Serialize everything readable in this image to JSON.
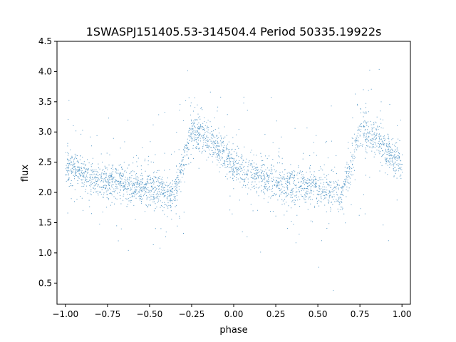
{
  "chart_data": {
    "type": "scatter",
    "title": "1SWASPJ151405.53-314504.4 Period 50335.19922s",
    "xlabel": "phase",
    "ylabel": "flux",
    "xlim": [
      -1.05,
      1.05
    ],
    "ylim": [
      0.15,
      4.5
    ],
    "xticks": [
      -1.0,
      -0.75,
      -0.5,
      -0.25,
      0.0,
      0.25,
      0.5,
      0.75,
      1.0
    ],
    "xtick_labels": [
      "−1.00",
      "−0.75",
      "−0.50",
      "−0.25",
      "0.00",
      "0.25",
      "0.50",
      "0.75",
      "1.00"
    ],
    "yticks": [
      0.5,
      1.0,
      1.5,
      2.0,
      2.5,
      3.0,
      3.5,
      4.0,
      4.5
    ],
    "ytick_labels": [
      "0.5",
      "1.0",
      "1.5",
      "2.0",
      "2.5",
      "3.0",
      "3.5",
      "4.0",
      "4.5"
    ],
    "grid": false,
    "color": "#1f77b4",
    "light_curve": {
      "phase": [
        0.0,
        0.05,
        0.1,
        0.15,
        0.2,
        0.25,
        0.3,
        0.35,
        0.4,
        0.45,
        0.5,
        0.55,
        0.6,
        0.64,
        0.7,
        0.75,
        0.78,
        0.85,
        0.9,
        0.95,
        1.0
      ],
      "flux": [
        2.45,
        2.38,
        2.32,
        2.27,
        2.22,
        2.19,
        2.16,
        2.13,
        2.11,
        2.09,
        2.07,
        2.05,
        2.02,
        1.95,
        2.5,
        3.05,
        3.0,
        2.85,
        2.72,
        2.6,
        2.45
      ]
    }
  }
}
